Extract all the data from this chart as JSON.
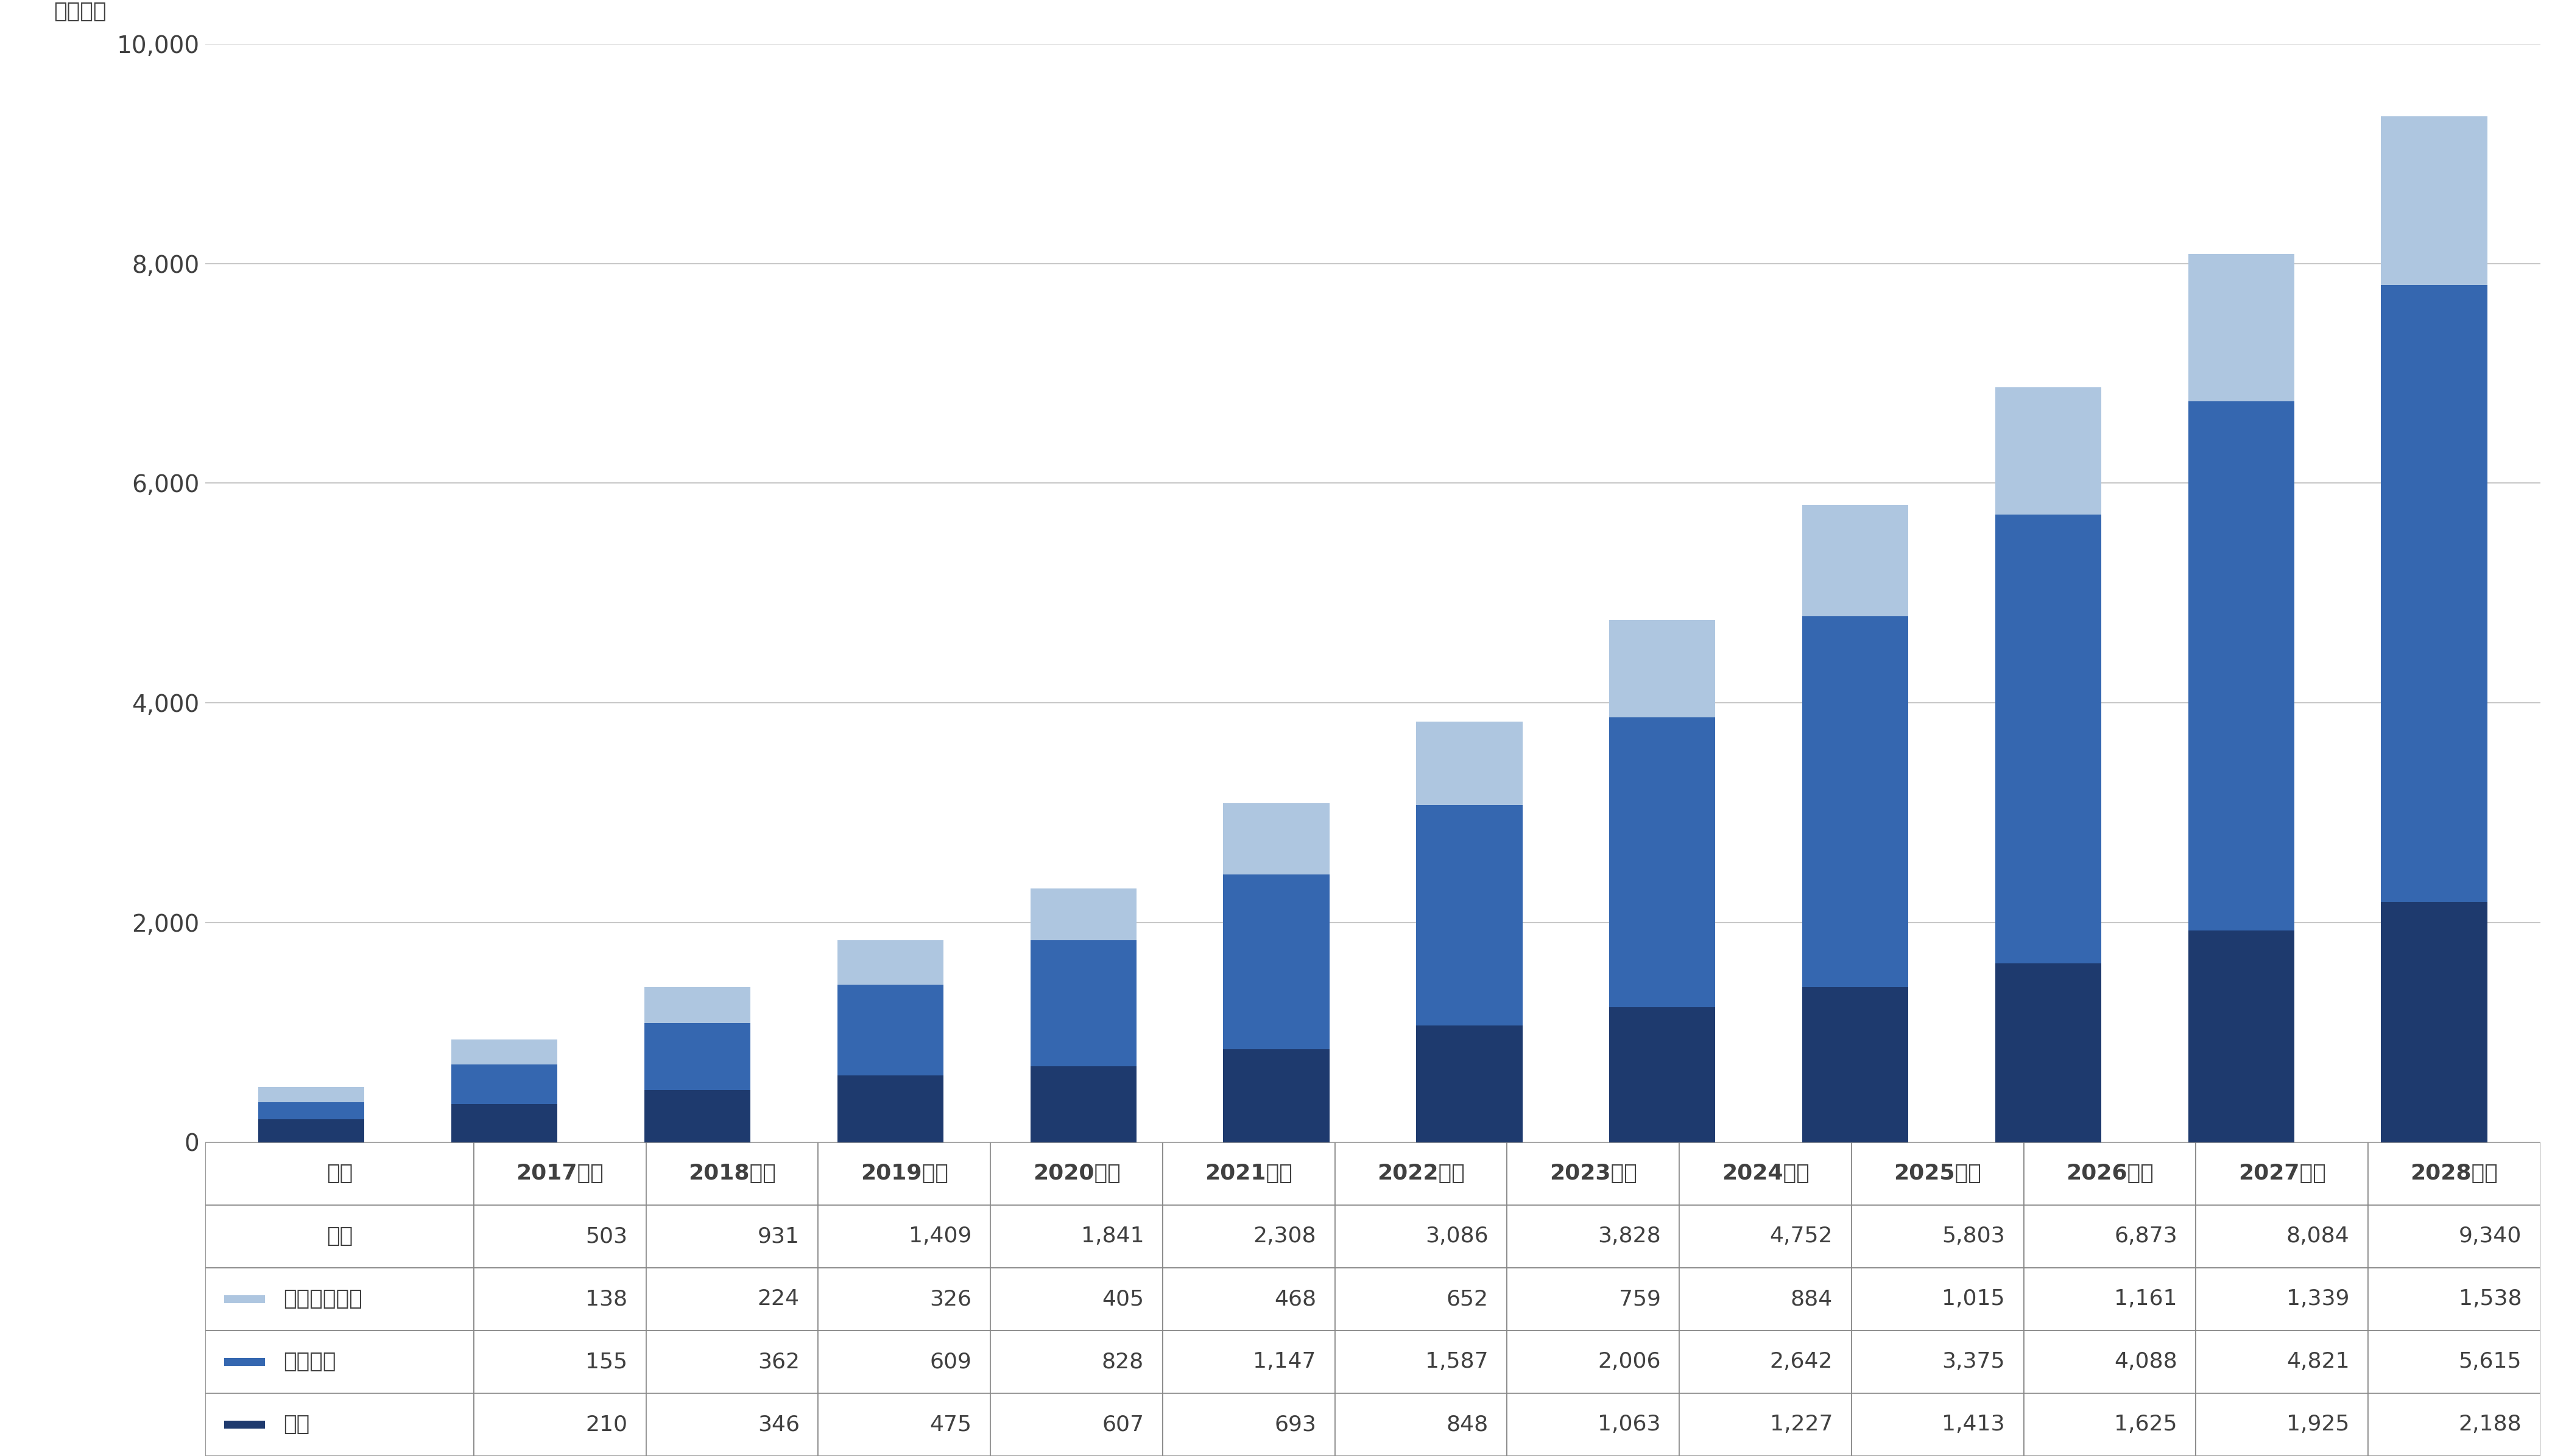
{
  "years": [
    "2017年度",
    "2018年度",
    "2019年度",
    "2020年度",
    "2021年度",
    "2022年度",
    "2023年度",
    "2024年度",
    "2025年度",
    "2026年度",
    "2027年度",
    "2028年度"
  ],
  "kisotai": [
    210,
    346,
    475,
    607,
    693,
    848,
    1063,
    1227,
    1413,
    1625,
    1925,
    2188
  ],
  "service": [
    155,
    362,
    609,
    828,
    1147,
    1587,
    2006,
    2642,
    3375,
    4088,
    4821,
    5615
  ],
  "peripheral": [
    138,
    224,
    326,
    405,
    468,
    652,
    759,
    884,
    1015,
    1161,
    1339,
    1538
  ],
  "total": [
    503,
    931,
    1409,
    1841,
    2308,
    3086,
    3828,
    4752,
    5803,
    6873,
    8084,
    9340
  ],
  "color_kisotai": "#1e3a6e",
  "color_service": "#3567b0",
  "color_peripheral": "#aec6e0",
  "ylabel": "（億円）",
  "ylim": [
    0,
    10000
  ],
  "yticks": [
    0,
    2000,
    4000,
    6000,
    8000,
    10000
  ],
  "background_color": "#ffffff",
  "grid_color": "#c8c8c8",
  "text_color": "#404040",
  "border_color": "#888888",
  "tick_fontsize": 28,
  "table_fontsize": 26,
  "ylabel_fontsize": 26,
  "bar_width": 0.55,
  "row_labels": [
    "年度",
    "合計",
    "周辺サービス",
    "サービス",
    "機体"
  ]
}
